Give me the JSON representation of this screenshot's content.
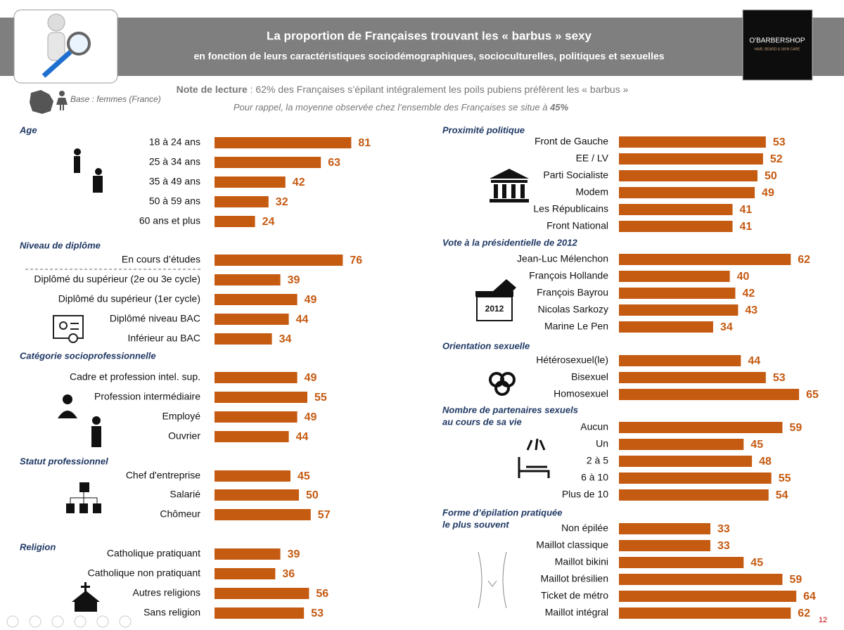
{
  "header": {
    "title": "La proportion de Françaises trouvant les « barbus » sexy",
    "subtitle": "en fonction de leurs caractéristiques sociodémographiques, socioculturelles, politiques et sexuelles",
    "logo": "O'BARBERSHOP",
    "logo_tagline": "HAIR, BEARD & SKIN CARE"
  },
  "base": "Base : femmes (France)",
  "note_label": "Note de lecture",
  "note_text": " : 62% des Françaises s’épilant intégralement les poils pubiens préfèrent les « barbus »",
  "reminder_text": "Pour rappel, la moyenne observée chez l’ensemble des Françaises se situe à ",
  "reminder_value": "45%",
  "ballot_label": "2012",
  "page_number": "12",
  "chart_data": [
    {
      "type": "bar",
      "title": "Age",
      "color": "#c55a11",
      "categories": [
        "18 à 24 ans",
        "25 à 34 ans",
        "35 à 49 ans",
        "50 à 59 ans",
        "60 ans et plus"
      ],
      "values": [
        81,
        63,
        42,
        32,
        24
      ]
    },
    {
      "type": "bar",
      "title": "Niveau de diplôme",
      "color": "#c55a11",
      "categories": [
        "En cours d’études",
        "Diplômé du supérieur (2e ou 3e cycle)",
        "Diplômé du supérieur (1er cycle)",
        "Diplômé niveau BAC",
        "Inférieur au BAC"
      ],
      "values": [
        76,
        39,
        49,
        44,
        34
      ]
    },
    {
      "type": "bar",
      "title": "Catégorie socioprofessionnelle",
      "color": "#c55a11",
      "categories": [
        "Cadre et profession intel. sup.",
        "Profession intermédiaire",
        "Employé",
        "Ouvrier"
      ],
      "values": [
        49,
        55,
        49,
        44
      ]
    },
    {
      "type": "bar",
      "title": "Statut professionnel",
      "color": "#c55a11",
      "categories": [
        "Chef d'entreprise",
        "Salarié",
        "Chômeur"
      ],
      "values": [
        45,
        50,
        57
      ]
    },
    {
      "type": "bar",
      "title": "Religion",
      "color": "#c55a11",
      "categories": [
        "Catholique pratiquant",
        "Catholique non pratiquant",
        "Autres religions",
        "Sans  religion"
      ],
      "values": [
        39,
        36,
        56,
        53
      ]
    },
    {
      "type": "bar",
      "title": "Proximité politique",
      "color": "#c55a11",
      "categories": [
        "Front de Gauche",
        "EE / LV",
        "Parti Socialiste",
        "Modem",
        "Les Républicains",
        "Front National"
      ],
      "values": [
        53,
        52,
        50,
        49,
        41,
        41
      ]
    },
    {
      "type": "bar",
      "title": "Vote à la présidentielle de 2012",
      "color": "#c55a11",
      "categories": [
        "Jean-Luc Mélenchon",
        "François Hollande",
        "François Bayrou",
        "Nicolas Sarkozy",
        "Marine Le Pen"
      ],
      "values": [
        62,
        40,
        42,
        43,
        34
      ]
    },
    {
      "type": "bar",
      "title": "Orientation sexuelle",
      "color": "#c55a11",
      "categories": [
        "Hétérosexuel(le)",
        "Bisexuel",
        "Homosexuel"
      ],
      "values": [
        44,
        53,
        65
      ]
    },
    {
      "type": "bar",
      "title": "Nombre de partenaires sexuels",
      "subtitle": "au cours de sa vie",
      "color": "#c55a11",
      "categories": [
        "Aucun",
        "Un",
        "2 à 5",
        "6 à 10",
        "Plus de 10"
      ],
      "values": [
        59,
        45,
        48,
        55,
        54
      ]
    },
    {
      "type": "bar",
      "title": "Forme d’épilation pratiquée",
      "subtitle": "le plus souvent",
      "color": "#c55a11",
      "categories": [
        "Non épilée",
        "Maillot classique",
        "Maillot bikini",
        "Maillot brésilien",
        "Ticket de métro",
        "Maillot intégral"
      ],
      "values": [
        33,
        33,
        45,
        59,
        64,
        62
      ]
    }
  ]
}
